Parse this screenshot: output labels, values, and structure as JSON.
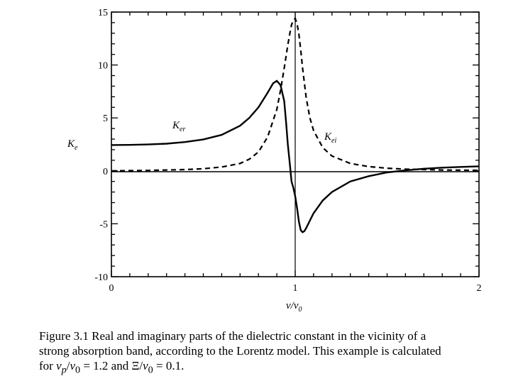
{
  "chart_data": {
    "type": "line",
    "xlabel": "ν/ν",
    "xlabel_sub": "0",
    "ylabel": "K",
    "ylabel_sub": "e",
    "xlim": [
      0,
      2
    ],
    "ylim": [
      -10,
      15
    ],
    "xticks": [
      "0",
      "1",
      "2"
    ],
    "yticks": [
      "15",
      "10",
      "5",
      "0",
      "-5",
      "-10"
    ],
    "grid": false,
    "series": [
      {
        "name": "K",
        "name_sub": "er",
        "style": "solid",
        "x": [
          0,
          0.1,
          0.2,
          0.3,
          0.4,
          0.5,
          0.6,
          0.7,
          0.75,
          0.8,
          0.85,
          0.88,
          0.9,
          0.92,
          0.94,
          0.95,
          0.96,
          0.97,
          0.98,
          0.99,
          1.0,
          1.01,
          1.02,
          1.03,
          1.04,
          1.05,
          1.06,
          1.08,
          1.1,
          1.15,
          1.2,
          1.3,
          1.4,
          1.5,
          1.6,
          1.7,
          1.8,
          1.9,
          2.0
        ],
        "y": [
          2.44,
          2.45,
          2.49,
          2.57,
          2.72,
          2.96,
          3.4,
          4.26,
          5.0,
          6.0,
          7.38,
          8.27,
          8.5,
          8.1,
          6.6,
          4.7,
          2.5,
          0.8,
          -1.0,
          -1.6,
          -2.4,
          -3.5,
          -4.8,
          -5.6,
          -5.8,
          -5.7,
          -5.4,
          -4.7,
          -4.0,
          -2.8,
          -2.0,
          -1.0,
          -0.5,
          -0.15,
          0.05,
          0.2,
          0.3,
          0.37,
          0.43
        ]
      },
      {
        "name": "K",
        "name_sub": "ei",
        "style": "dashed",
        "x": [
          0,
          0.2,
          0.4,
          0.5,
          0.6,
          0.7,
          0.75,
          0.8,
          0.85,
          0.9,
          0.92,
          0.94,
          0.96,
          0.97,
          0.98,
          0.99,
          1.0,
          1.01,
          1.02,
          1.03,
          1.04,
          1.06,
          1.08,
          1.1,
          1.15,
          1.2,
          1.3,
          1.4,
          1.5,
          1.6,
          1.8,
          2.0
        ],
        "y": [
          0.0,
          0.04,
          0.12,
          0.2,
          0.36,
          0.7,
          1.1,
          1.78,
          3.2,
          5.8,
          7.6,
          9.7,
          11.9,
          12.9,
          13.8,
          14.2,
          14.4,
          13.9,
          12.9,
          11.4,
          9.7,
          6.9,
          5.0,
          3.8,
          2.2,
          1.4,
          0.7,
          0.4,
          0.25,
          0.16,
          0.08,
          0.05
        ]
      }
    ],
    "annotations": [
      {
        "text": "K",
        "sub": "er",
        "x": 0.88,
        "y": 4.5
      },
      {
        "text": "K",
        "sub": "ei",
        "x": 1.2,
        "y": 3.0
      }
    ]
  },
  "caption": {
    "line1": "Figure 3.1  Real and imaginary parts of the dielectric constant in the vicinity of a",
    "line2": "strong absorption band, according to the Lorentz model. This example is calculated",
    "line3_prefix": "for ",
    "line3_var1": "ν",
    "line3_sub1": "p",
    "line3_mid1": "/",
    "line3_var2": "ν",
    "line3_sub2": "0",
    "line3_eq1": " = 1.2 and Ξ/",
    "line3_var3": "ν",
    "line3_sub3": "0",
    "line3_eq2": " = 0.1."
  }
}
